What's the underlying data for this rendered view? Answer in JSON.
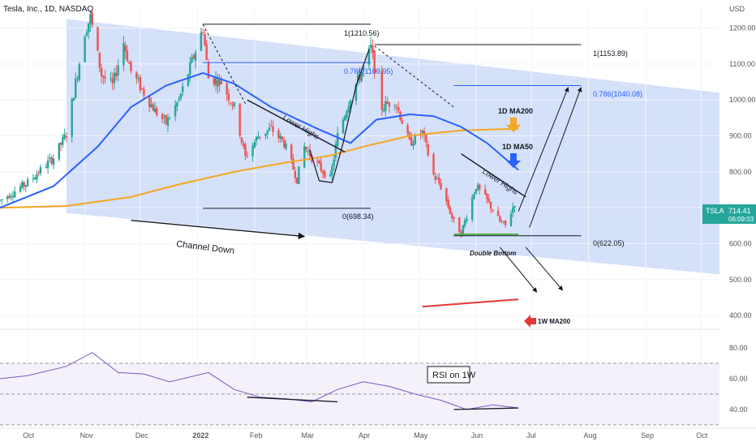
{
  "header": {
    "symbol_title": "Tesla, Inc., 1D, NASDAQ",
    "currency": "USD"
  },
  "price_axis": {
    "ticks": [
      "1200.00",
      "1100.00",
      "1000.00",
      "900.00",
      "800.00",
      "700.00",
      "600.00",
      "500.00",
      "400.00"
    ],
    "rsi_ticks": [
      "80.00",
      "60.00",
      "40.00"
    ]
  },
  "time_axis": {
    "labels": [
      "Oct",
      "Nov",
      "Dec",
      "2022",
      "Feb",
      "Mar",
      "Apr",
      "May",
      "Jun",
      "Jul",
      "Aug",
      "Sep",
      "Oct"
    ]
  },
  "tag": {
    "symbol": "TSLA",
    "price": "714.41",
    "countdown": "06:09:03"
  },
  "annotations": {
    "fib_top_left": "1(1210.56)",
    "fib_786_left": "0.786(1103.95)",
    "fib_top_right": "1(1153.89)",
    "fib_786_right": "0.786(1040.08)",
    "fib_zero_left": "0(698.34)",
    "fib_zero_right": "0(622.05)",
    "lower_highs_1": "Lower Highs",
    "lower_highs_2": "Lower Highs",
    "channel_down": "Channel Down",
    "double_bottom": "Double Bottom",
    "ma200_1d": "1D MA200",
    "ma50_1d": "1D MA50",
    "ma200_1w": "1W MA200",
    "rsi_label": "RSI on 1W"
  },
  "colors": {
    "up": "#26a69a",
    "down": "#ef5350",
    "ma50": "#2962ff",
    "ma200": "#f5a623",
    "channel": "#c7d6f7",
    "rsi": "#7e57c2",
    "wma200": "#e53935",
    "tag": "#26a69a"
  },
  "chart_data": [
    {
      "type": "candlestick",
      "title": "Tesla, Inc., 1D, NASDAQ",
      "ylabel": "USD",
      "ylim": [
        380,
        1260
      ],
      "x_range": [
        "2021-09-16",
        "2022-10-11"
      ],
      "anchors": [
        [
          "2021-09-16",
          720
        ],
        [
          "2021-10-01",
          770
        ],
        [
          "2021-10-15",
          840
        ],
        [
          "2021-10-22",
          905
        ],
        [
          "2021-10-26",
          1020
        ],
        [
          "2021-11-01",
          1190
        ],
        [
          "2021-11-04",
          1230
        ],
        [
          "2021-11-10",
          1070
        ],
        [
          "2021-11-16",
          1040
        ],
        [
          "2021-11-22",
          1160
        ],
        [
          "2021-11-26",
          1080
        ],
        [
          "2021-12-03",
          1020
        ],
        [
          "2021-12-09",
          970
        ],
        [
          "2021-12-15",
          935
        ],
        [
          "2021-12-22",
          1000
        ],
        [
          "2021-12-28",
          1090
        ],
        [
          "2022-01-04",
          1200
        ],
        [
          "2022-01-07",
          1060
        ],
        [
          "2022-01-14",
          1050
        ],
        [
          "2022-01-21",
          980
        ],
        [
          "2022-01-27",
          840
        ],
        [
          "2022-02-03",
          900
        ],
        [
          "2022-02-10",
          920
        ],
        [
          "2022-02-17",
          880
        ],
        [
          "2022-02-24",
          780
        ],
        [
          "2022-02-28",
          870
        ],
        [
          "2022-03-07",
          820
        ],
        [
          "2022-03-14",
          780
        ],
        [
          "2022-03-18",
          900
        ],
        [
          "2022-03-25",
          1010
        ],
        [
          "2022-04-01",
          1090
        ],
        [
          "2022-04-05",
          1145
        ],
        [
          "2022-04-11",
          980
        ],
        [
          "2022-04-18",
          1000
        ],
        [
          "2022-04-26",
          880
        ],
        [
          "2022-05-03",
          910
        ],
        [
          "2022-05-09",
          790
        ],
        [
          "2022-05-13",
          760
        ],
        [
          "2022-05-20",
          660
        ],
        [
          "2022-05-24",
          630
        ],
        [
          "2022-06-01",
          760
        ],
        [
          "2022-06-07",
          720
        ],
        [
          "2022-06-14",
          660
        ],
        [
          "2022-06-17",
          650
        ],
        [
          "2022-06-22",
          714
        ]
      ],
      "ma50_1d": [
        [
          "2021-09-16",
          700
        ],
        [
          "2021-10-15",
          760
        ],
        [
          "2021-11-08",
          870
        ],
        [
          "2021-11-26",
          980
        ],
        [
          "2021-12-15",
          1040
        ],
        [
          "2022-01-04",
          1075
        ],
        [
          "2022-01-21",
          1045
        ],
        [
          "2022-02-10",
          980
        ],
        [
          "2022-03-07",
          920
        ],
        [
          "2022-03-25",
          880
        ],
        [
          "2022-04-08",
          945
        ],
        [
          "2022-04-26",
          960
        ],
        [
          "2022-05-09",
          955
        ],
        [
          "2022-05-24",
          925
        ],
        [
          "2022-06-07",
          880
        ],
        [
          "2022-06-24",
          805
        ]
      ],
      "ma200_1d": [
        [
          "2021-09-16",
          700
        ],
        [
          "2021-10-22",
          705
        ],
        [
          "2021-11-26",
          730
        ],
        [
          "2021-12-22",
          765
        ],
        [
          "2022-01-21",
          800
        ],
        [
          "2022-02-17",
          825
        ],
        [
          "2022-03-14",
          845
        ],
        [
          "2022-04-01",
          870
        ],
        [
          "2022-04-26",
          900
        ],
        [
          "2022-05-24",
          915
        ],
        [
          "2022-06-24",
          920
        ]
      ],
      "ma200_1w": [
        [
          "2022-05-03",
          425
        ],
        [
          "2022-06-24",
          445
        ]
      ],
      "channel": {
        "upper": [
          [
            "2021-10-22",
            1225
          ],
          [
            "2022-10-11",
            1020
          ]
        ],
        "lower": [
          [
            "2021-10-22",
            685
          ],
          [
            "2022-10-11",
            515
          ]
        ]
      },
      "fib_levels": [
        {
          "ratio": 1,
          "value": 1210.56
        },
        {
          "ratio": 0.786,
          "value": 1103.95
        },
        {
          "ratio": 1,
          "value": 1153.89
        },
        {
          "ratio": 0.786,
          "value": 1040.08
        },
        {
          "ratio": 0,
          "value": 698.34
        },
        {
          "ratio": 0,
          "value": 622.05
        }
      ],
      "last_price": 714.41
    },
    {
      "type": "line",
      "title": "RSI on 1W",
      "ylim": [
        30,
        90
      ],
      "x": [
        "2021-09-16",
        "2021-10-01",
        "2021-10-22",
        "2021-11-05",
        "2021-11-19",
        "2021-12-03",
        "2021-12-17",
        "2022-01-07",
        "2022-01-21",
        "2022-02-04",
        "2022-02-18",
        "2022-03-04",
        "2022-03-18",
        "2022-04-01",
        "2022-04-15",
        "2022-04-29",
        "2022-05-13",
        "2022-05-27",
        "2022-06-10",
        "2022-06-24"
      ],
      "values": [
        60,
        62,
        68,
        77,
        64,
        63,
        58,
        64,
        53,
        48,
        47,
        45,
        53,
        58,
        55,
        50,
        46,
        40,
        43,
        41
      ]
    }
  ]
}
